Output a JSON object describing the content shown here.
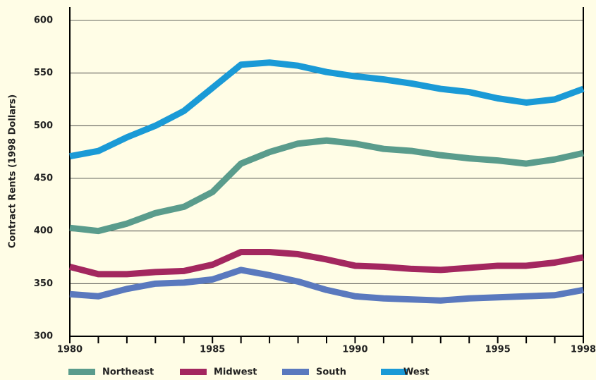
{
  "chart_data": {
    "type": "line",
    "y_label": "Contract Rents (1998 Dollars)",
    "x": [
      1980,
      1981,
      1982,
      1983,
      1984,
      1985,
      1986,
      1987,
      1988,
      1989,
      1990,
      1991,
      1992,
      1993,
      1994,
      1995,
      1996,
      1997,
      1998
    ],
    "xlim": [
      1980,
      1998
    ],
    "xticks": [
      1980,
      1985,
      1990,
      1995,
      1998
    ],
    "ylim": [
      300,
      600
    ],
    "yticks": [
      300,
      350,
      400,
      450,
      500,
      550,
      600
    ],
    "grid": true,
    "legend": "bottom",
    "series": [
      {
        "name": "Northeast",
        "color": "#5a9c8c",
        "values": [
          403,
          400,
          407,
          417,
          423,
          437,
          464,
          475,
          483,
          486,
          483,
          478,
          476,
          472,
          469,
          467,
          464,
          468,
          474
        ]
      },
      {
        "name": "Midwest",
        "color": "#a3275f",
        "values": [
          366,
          359,
          359,
          361,
          362,
          368,
          380,
          380,
          378,
          373,
          367,
          366,
          364,
          363,
          365,
          367,
          367,
          370,
          375
        ]
      },
      {
        "name": "South",
        "color": "#5a79be",
        "values": [
          340,
          338,
          345,
          350,
          351,
          354,
          363,
          358,
          352,
          344,
          338,
          336,
          335,
          334,
          336,
          337,
          338,
          339,
          344
        ]
      },
      {
        "name": "West",
        "color": "#1a9ad6",
        "values": [
          471,
          476,
          489,
          500,
          514,
          536,
          558,
          560,
          557,
          551,
          547,
          544,
          540,
          535,
          532,
          526,
          522,
          525,
          535
        ]
      }
    ]
  }
}
